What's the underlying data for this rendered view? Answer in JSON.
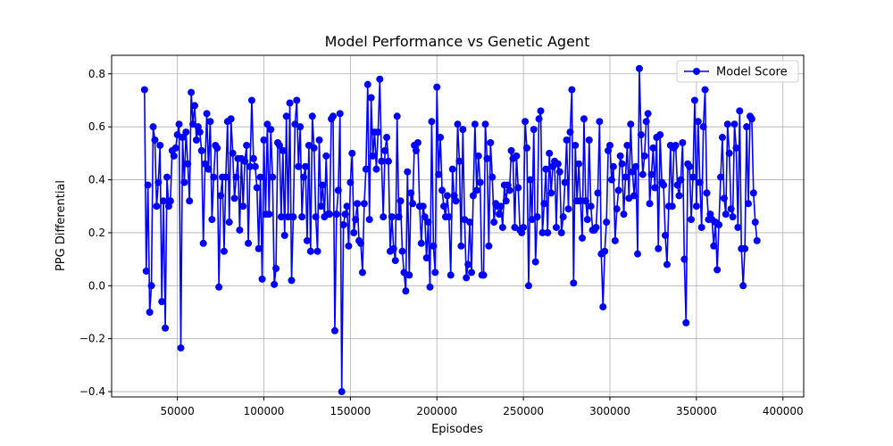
{
  "chart_data": {
    "type": "line",
    "title": "Model Performance vs Genetic Agent",
    "xlabel": "Episodes",
    "ylabel": "PPG Differential",
    "xlim": [
      12000,
      412000
    ],
    "ylim": [
      -0.42,
      0.87
    ],
    "xticks": [
      50000,
      100000,
      150000,
      200000,
      250000,
      300000,
      350000,
      400000
    ],
    "xtick_labels": [
      "50000",
      "100000",
      "150000",
      "200000",
      "250000",
      "300000",
      "350000",
      "400000"
    ],
    "yticks": [
      -0.4,
      -0.2,
      0.0,
      0.2,
      0.4,
      0.6,
      0.8
    ],
    "ytick_labels": [
      "−0.4",
      "−0.2",
      "0.0",
      "0.2",
      "0.4",
      "0.6",
      "0.8"
    ],
    "grid": true,
    "legend": {
      "position": "top-right"
    },
    "series": [
      {
        "name": "Model Score",
        "color": "#0000ff",
        "marker": "circle",
        "x_start": 31000,
        "x_step": 1000,
        "values": [
          0.74,
          0.055,
          0.38,
          -0.1,
          0.0,
          0.6,
          0.55,
          0.3,
          0.39,
          0.53,
          -0.06,
          0.32,
          -0.16,
          0.41,
          0.3,
          0.32,
          0.51,
          0.49,
          0.52,
          0.57,
          0.61,
          -0.235,
          0.56,
          0.39,
          0.58,
          0.46,
          0.32,
          0.73,
          0.61,
          0.68,
          0.55,
          0.6,
          0.58,
          0.51,
          0.16,
          0.46,
          0.65,
          0.44,
          0.62,
          0.25,
          0.41,
          0.53,
          0.52,
          -0.005,
          0.34,
          0.41,
          0.13,
          0.41,
          0.62,
          0.24,
          0.63,
          0.5,
          0.33,
          0.41,
          0.48,
          0.21,
          0.48,
          0.3,
          0.47,
          0.53,
          0.16,
          0.45,
          0.7,
          0.48,
          0.45,
          0.37,
          0.14,
          0.41,
          0.025,
          0.55,
          0.27,
          0.61,
          0.27,
          0.59,
          0.41,
          0.005,
          0.065,
          0.54,
          0.53,
          0.26,
          0.51,
          0.19,
          0.64,
          0.26,
          0.69,
          0.02,
          0.26,
          0.61,
          0.7,
          0.45,
          0.6,
          0.26,
          0.41,
          0.45,
          0.17,
          0.53,
          0.13,
          0.64,
          0.52,
          0.26,
          0.13,
          0.55,
          0.3,
          0.38,
          0.26,
          0.49,
          0.27,
          0.27,
          0.63,
          0.64,
          -0.17,
          0.27,
          0.36,
          0.65,
          -0.4,
          0.23,
          0.27,
          0.3,
          0.15,
          0.39,
          0.5,
          0.2,
          0.25,
          0.31,
          0.17,
          0.16,
          0.05,
          0.31,
          0.44,
          0.76,
          0.25,
          0.71,
          0.49,
          0.58,
          0.44,
          0.58,
          0.78,
          0.47,
          0.26,
          0.51,
          0.56,
          0.47,
          0.13,
          0.26,
          0.14,
          0.095,
          0.64,
          0.26,
          0.32,
          0.13,
          0.05,
          -0.02,
          0.43,
          0.04,
          0.35,
          0.31,
          0.53,
          0.51,
          0.54,
          0.3,
          0.16,
          0.3,
          0.26,
          0.105,
          0.24,
          -0.005,
          0.62,
          0.15,
          0.05,
          0.75,
          0.42,
          0.56,
          0.36,
          0.3,
          0.26,
          0.34,
          0.26,
          0.04,
          0.44,
          0.34,
          0.32,
          0.61,
          0.47,
          0.15,
          0.59,
          0.25,
          0.03,
          0.08,
          0.24,
          0.05,
          0.34,
          0.61,
          0.36,
          0.49,
          0.39,
          0.04,
          0.04,
          0.61,
          0.48,
          0.15,
          0.54,
          0.41,
          0.24,
          0.31,
          0.3,
          0.27,
          0.3,
          0.22,
          0.38,
          0.32,
          0.38,
          0.36,
          0.51,
          0.48,
          0.22,
          0.49,
          0.37,
          0.21,
          0.2,
          0.22,
          0.62,
          0.52,
          0.0,
          0.4,
          0.25,
          0.59,
          0.09,
          0.26,
          0.63,
          0.66,
          0.2,
          0.31,
          0.44,
          0.2,
          0.5,
          0.35,
          0.45,
          0.47,
          0.22,
          0.46,
          0.43,
          0.2,
          0.26,
          0.39,
          0.55,
          0.29,
          0.58,
          0.74,
          0.01,
          0.53,
          0.32,
          0.46,
          0.32,
          0.18,
          0.63,
          0.32,
          0.25,
          0.55,
          0.3,
          0.21,
          0.21,
          0.22,
          0.35,
          0.62,
          0.12,
          -0.08,
          0.13,
          0.24,
          0.51,
          0.53,
          0.4,
          0.45,
          0.17,
          0.29,
          0.36,
          0.49,
          0.46,
          0.27,
          0.41,
          0.53,
          0.33,
          0.61,
          0.43,
          0.34,
          0.45,
          0.12,
          0.82,
          0.57,
          0.42,
          0.49,
          0.62,
          0.65,
          0.31,
          0.42,
          0.52,
          0.37,
          0.56,
          0.14,
          0.57,
          0.39,
          0.38,
          0.19,
          0.08,
          0.3,
          0.53,
          0.3,
          0.52,
          0.53,
          0.38,
          0.34,
          0.4,
          0.54,
          0.1,
          -0.14,
          0.46,
          0.45,
          0.25,
          0.41,
          0.7,
          0.3,
          0.62,
          0.39,
          0.22,
          0.6,
          0.74,
          0.35,
          0.25,
          0.27,
          0.25,
          0.15,
          0.24,
          0.06,
          0.23,
          0.41,
          0.56,
          0.33,
          0.27,
          0.61,
          0.5,
          0.29,
          0.26,
          0.61,
          0.52,
          0.22,
          0.66,
          0.14,
          0.0,
          0.14,
          0.6,
          0.31,
          0.64,
          0.63,
          0.35,
          0.24,
          0.17
        ]
      }
    ]
  }
}
